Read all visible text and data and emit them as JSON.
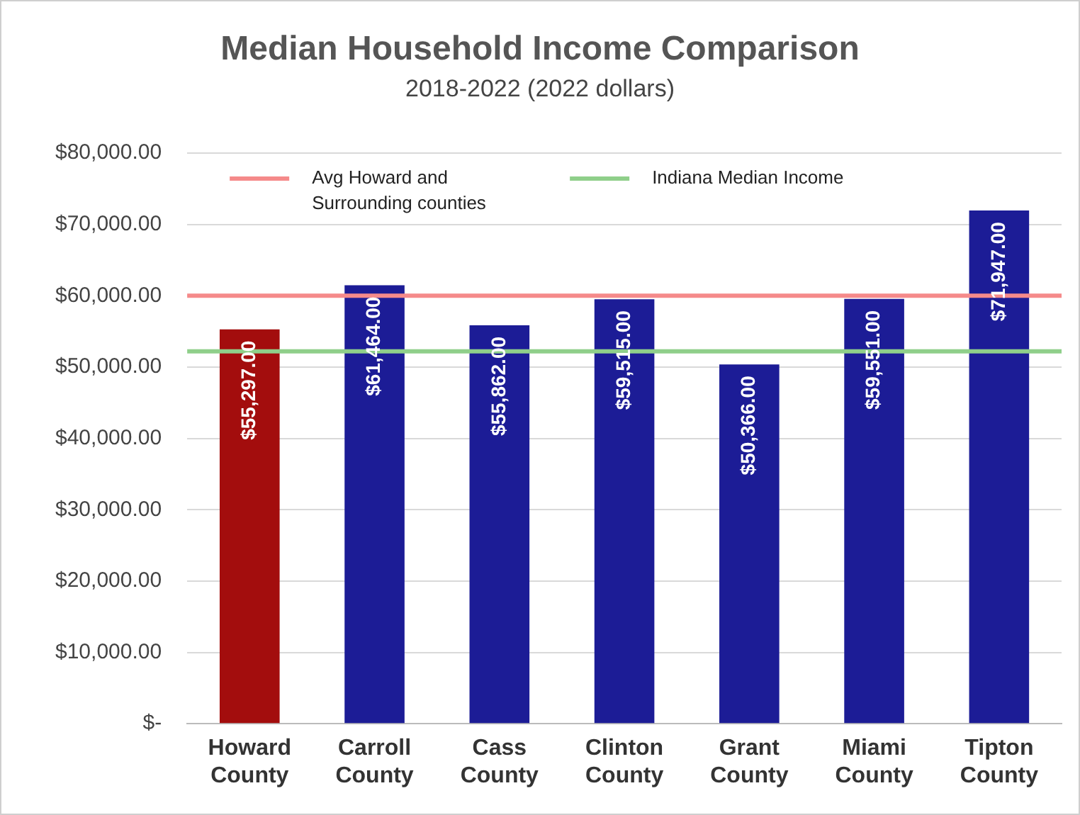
{
  "chart_data": {
    "type": "bar",
    "title": "Median Household Income Comparison",
    "subtitle": "2018-2022 (2022 dollars)",
    "categories": [
      "Howard County",
      "Carroll County",
      "Cass County",
      "Clinton County",
      "Grant County",
      "Miami County",
      "Tipton County"
    ],
    "values": [
      55297,
      61464,
      55862,
      59515,
      50366,
      59551,
      71947
    ],
    "colors": [
      "#a30d0d",
      "#1c1c96",
      "#1c1c96",
      "#1c1c96",
      "#1c1c96",
      "#1c1c96",
      "#1c1c96"
    ],
    "value_labels": [
      "$55,297.00",
      "$61,464.00",
      "$55,862.00",
      "$59,515.00",
      "$50,366.00",
      "$59,551.00",
      "$71,947.00"
    ],
    "ylim": [
      0,
      80000
    ],
    "yticks": [
      {
        "value": 0,
        "label": "$-"
      },
      {
        "value": 10000,
        "label": "$10,000.00"
      },
      {
        "value": 20000,
        "label": "$20,000.00"
      },
      {
        "value": 30000,
        "label": "$30,000.00"
      },
      {
        "value": 40000,
        "label": "$40,000.00"
      },
      {
        "value": 50000,
        "label": "$50,000.00"
      },
      {
        "value": 60000,
        "label": "$60,000.00"
      },
      {
        "value": 70000,
        "label": "$70,000.00"
      },
      {
        "value": 80000,
        "label": "$80,000.00"
      }
    ],
    "ref_lines": [
      {
        "axis": "y",
        "value": 60000,
        "label": "Avg Howard and Surrounding counties",
        "color": "#f58a8a"
      },
      {
        "axis": "y",
        "value": 52200,
        "label": "Indiana Median Income",
        "color": "#8fcf8a"
      }
    ],
    "grid": "y",
    "legend": "top"
  }
}
